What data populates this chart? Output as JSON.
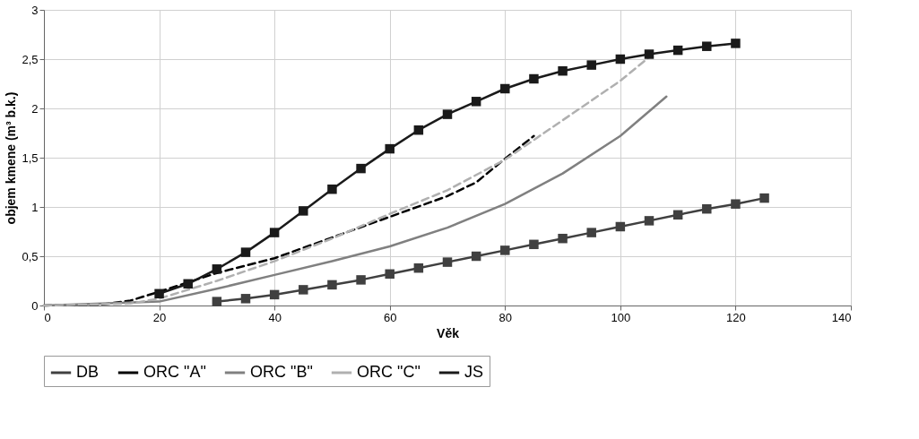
{
  "chart_data": {
    "type": "line",
    "xlabel": "Věk",
    "ylabel": "objem kmene (m³ b.k.)",
    "xlim": [
      0,
      140
    ],
    "xticks": [
      0,
      20,
      40,
      60,
      80,
      100,
      120,
      140
    ],
    "ylim": [
      0,
      3
    ],
    "yticks": [
      0,
      {
        "value": 0.5,
        "label": "0,5"
      },
      1,
      {
        "value": 1.5,
        "label": "1,5"
      },
      2,
      {
        "value": 2.5,
        "label": "2,5"
      },
      3
    ],
    "grid": true,
    "legend": "bottom",
    "series": [
      {
        "name": "DB",
        "color": "#404040",
        "marker": "square",
        "line_style": "solid",
        "x": [
          30,
          35,
          40,
          45,
          50,
          55,
          60,
          65,
          70,
          75,
          80,
          85,
          90,
          95,
          100,
          105,
          110,
          115,
          120,
          125
        ],
        "values": [
          0.04,
          0.07,
          0.11,
          0.16,
          0.21,
          0.26,
          0.32,
          0.38,
          0.44,
          0.5,
          0.56,
          0.62,
          0.68,
          0.74,
          0.8,
          0.86,
          0.92,
          0.98,
          1.03,
          1.09
        ]
      },
      {
        "name": "ORC \"A\"",
        "color": "#000000",
        "marker": "none",
        "line_style": "dashed",
        "x": [
          0,
          10,
          15,
          20,
          30,
          40,
          50,
          60,
          70,
          75,
          80,
          85
        ],
        "values": [
          0,
          0.01,
          0.05,
          0.14,
          0.33,
          0.48,
          0.69,
          0.9,
          1.11,
          1.25,
          1.49,
          1.72
        ]
      },
      {
        "name": "ORC \"B\"",
        "color": "#808080",
        "marker": "none",
        "line_style": "solid",
        "x": [
          0,
          20,
          30,
          40,
          50,
          60,
          70,
          80,
          90,
          100,
          108
        ],
        "values": [
          0,
          0.04,
          0.17,
          0.31,
          0.45,
          0.6,
          0.79,
          1.03,
          1.34,
          1.72,
          2.12
        ]
      },
      {
        "name": "ORC \"C\"",
        "color": "#b0b0b0",
        "marker": "none",
        "line_style": "dashed",
        "x": [
          0,
          15,
          20,
          30,
          40,
          50,
          60,
          70,
          80,
          90,
          100,
          105
        ],
        "values": [
          0,
          0.02,
          0.07,
          0.25,
          0.45,
          0.68,
          0.93,
          1.17,
          1.48,
          1.88,
          2.28,
          2.52
        ]
      },
      {
        "name": "JS",
        "color": "#1a1a1a",
        "marker": "square",
        "line_style": "solid",
        "x": [
          20,
          25,
          30,
          35,
          40,
          45,
          50,
          55,
          60,
          65,
          70,
          75,
          80,
          85,
          90,
          95,
          100,
          105,
          110,
          115,
          120
        ],
        "values": [
          0.12,
          0.22,
          0.37,
          0.54,
          0.74,
          0.96,
          1.18,
          1.39,
          1.59,
          1.78,
          1.94,
          2.07,
          2.2,
          2.3,
          2.38,
          2.44,
          2.5,
          2.55,
          2.59,
          2.63,
          2.66
        ]
      }
    ]
  }
}
